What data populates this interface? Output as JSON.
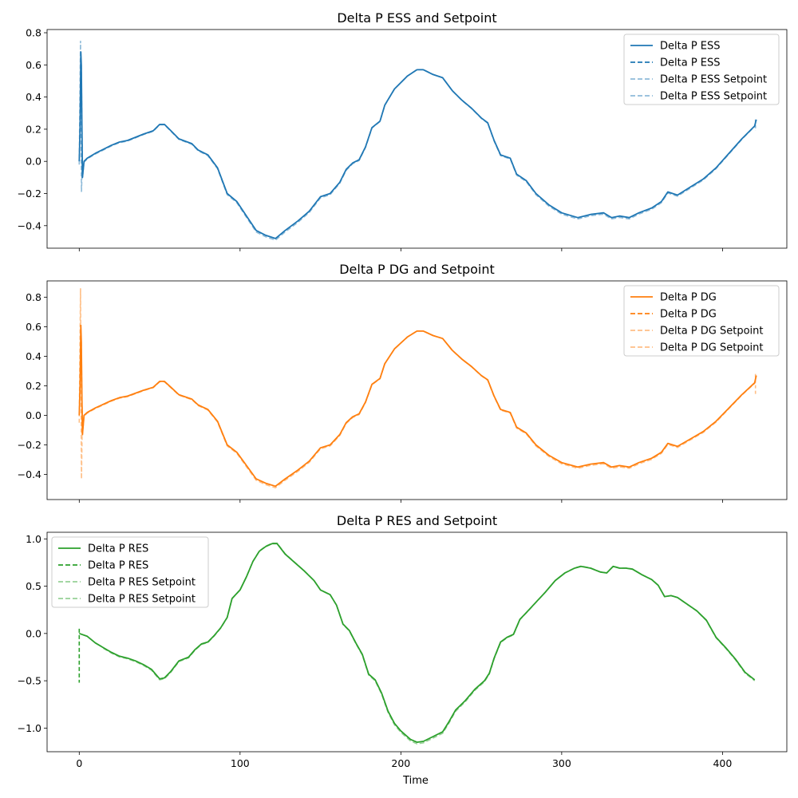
{
  "figure": {
    "xlabel": "Time"
  },
  "chart_data": [
    {
      "type": "line",
      "title": "Delta P ESS and Setpoint",
      "xlabel": "",
      "ylabel": "",
      "xlim": [
        -20,
        440
      ],
      "ylim": [
        -0.54,
        0.82
      ],
      "xticks": [
        0,
        100,
        200,
        300,
        400
      ],
      "xticklabels_visible": false,
      "yticks": [
        -0.4,
        -0.2,
        0.0,
        0.2,
        0.4,
        0.6,
        0.8
      ],
      "ytick_labels": [
        "−0.4",
        "−0.2",
        "0.0",
        "0.2",
        "0.4",
        "0.6",
        "0.8"
      ],
      "legend_position": "upper right",
      "colors": {
        "main": "#1f77b4",
        "setpoint": "#8fbbd9"
      },
      "series": [
        {
          "name": "Delta P ESS",
          "style": "solid"
        },
        {
          "name": "Delta P ESS",
          "style": "dashed"
        },
        {
          "name": "Delta P ESS Setpoint",
          "style": "dashed-light"
        },
        {
          "name": "Delta P ESS Setpoint",
          "style": "dashed-light"
        }
      ],
      "main_curve": [
        [
          0,
          0.0
        ],
        [
          0.5,
          0.2
        ],
        [
          1,
          0.68
        ],
        [
          1.3,
          0.6
        ],
        [
          1.7,
          0.2
        ],
        [
          2,
          -0.1
        ],
        [
          3,
          0.0
        ],
        [
          5,
          0.02
        ],
        [
          10,
          0.05
        ],
        [
          20,
          0.1
        ],
        [
          25,
          0.12
        ],
        [
          30,
          0.13
        ],
        [
          40,
          0.17
        ],
        [
          46,
          0.19
        ],
        [
          50,
          0.23
        ],
        [
          53,
          0.23
        ],
        [
          57,
          0.19
        ],
        [
          62,
          0.14
        ],
        [
          70,
          0.11
        ],
        [
          74,
          0.07
        ],
        [
          80,
          0.04
        ],
        [
          86,
          -0.04
        ],
        [
          92,
          -0.2
        ],
        [
          98,
          -0.25
        ],
        [
          104,
          -0.34
        ],
        [
          110,
          -0.43
        ],
        [
          116,
          -0.46
        ],
        [
          122,
          -0.48
        ],
        [
          128,
          -0.43
        ],
        [
          136,
          -0.37
        ],
        [
          143,
          -0.31
        ],
        [
          150,
          -0.22
        ],
        [
          156,
          -0.2
        ],
        [
          162,
          -0.13
        ],
        [
          166,
          -0.05
        ],
        [
          170,
          -0.01
        ],
        [
          174,
          0.01
        ],
        [
          178,
          0.09
        ],
        [
          182,
          0.21
        ],
        [
          187,
          0.25
        ],
        [
          190,
          0.35
        ],
        [
          196,
          0.45
        ],
        [
          204,
          0.53
        ],
        [
          210,
          0.57
        ],
        [
          214,
          0.57
        ],
        [
          220,
          0.54
        ],
        [
          226,
          0.52
        ],
        [
          232,
          0.44
        ],
        [
          238,
          0.38
        ],
        [
          244,
          0.33
        ],
        [
          250,
          0.27
        ],
        [
          254,
          0.24
        ],
        [
          258,
          0.13
        ],
        [
          262,
          0.04
        ],
        [
          268,
          0.02
        ],
        [
          272,
          -0.08
        ],
        [
          278,
          -0.12
        ],
        [
          284,
          -0.2
        ],
        [
          292,
          -0.27
        ],
        [
          300,
          -0.32
        ],
        [
          310,
          -0.35
        ],
        [
          318,
          -0.33
        ],
        [
          326,
          -0.32
        ],
        [
          331,
          -0.35
        ],
        [
          336,
          -0.34
        ],
        [
          342,
          -0.35
        ],
        [
          348,
          -0.32
        ],
        [
          356,
          -0.29
        ],
        [
          362,
          -0.25
        ],
        [
          366,
          -0.19
        ],
        [
          372,
          -0.21
        ],
        [
          380,
          -0.16
        ],
        [
          388,
          -0.11
        ],
        [
          396,
          -0.04
        ],
        [
          404,
          0.05
        ],
        [
          412,
          0.14
        ],
        [
          420,
          0.22
        ],
        [
          421,
          0.26
        ]
      ],
      "setpoint_spikes": [
        [
          0,
          -0.02
        ],
        [
          0.8,
          0.75
        ],
        [
          1.4,
          -0.19
        ],
        [
          2,
          0.02
        ]
      ],
      "setpoint_end": [
        [
          420.5,
          0.26
        ],
        [
          420.5,
          0.19
        ]
      ]
    },
    {
      "type": "line",
      "title": "Delta P DG and Setpoint",
      "xlabel": "",
      "ylabel": "",
      "xlim": [
        -20,
        440
      ],
      "ylim": [
        -0.57,
        0.91
      ],
      "xticks": [
        0,
        100,
        200,
        300,
        400
      ],
      "xticklabels_visible": false,
      "yticks": [
        -0.4,
        -0.2,
        0.0,
        0.2,
        0.4,
        0.6,
        0.8
      ],
      "ytick_labels": [
        "−0.4",
        "−0.2",
        "0.0",
        "0.2",
        "0.4",
        "0.6",
        "0.8"
      ],
      "legend_position": "upper right",
      "colors": {
        "main": "#ff7f0e",
        "setpoint": "#ffbf86"
      },
      "series": [
        {
          "name": "Delta P DG",
          "style": "solid"
        },
        {
          "name": "Delta P DG",
          "style": "dashed"
        },
        {
          "name": "Delta P DG Setpoint",
          "style": "dashed-light"
        },
        {
          "name": "Delta P DG Setpoint",
          "style": "dashed-light"
        }
      ],
      "main_curve": [
        [
          0,
          0.0
        ],
        [
          0.5,
          0.2
        ],
        [
          1,
          0.61
        ],
        [
          1.3,
          0.5
        ],
        [
          1.7,
          0.1
        ],
        [
          2,
          -0.13
        ],
        [
          3,
          0.0
        ],
        [
          5,
          0.02
        ],
        [
          10,
          0.05
        ],
        [
          20,
          0.1
        ],
        [
          25,
          0.12
        ],
        [
          30,
          0.13
        ],
        [
          40,
          0.17
        ],
        [
          46,
          0.19
        ],
        [
          50,
          0.23
        ],
        [
          53,
          0.23
        ],
        [
          57,
          0.19
        ],
        [
          62,
          0.14
        ],
        [
          70,
          0.11
        ],
        [
          74,
          0.07
        ],
        [
          80,
          0.04
        ],
        [
          86,
          -0.04
        ],
        [
          92,
          -0.2
        ],
        [
          98,
          -0.25
        ],
        [
          104,
          -0.34
        ],
        [
          110,
          -0.43
        ],
        [
          116,
          -0.46
        ],
        [
          122,
          -0.48
        ],
        [
          128,
          -0.43
        ],
        [
          136,
          -0.37
        ],
        [
          143,
          -0.31
        ],
        [
          150,
          -0.22
        ],
        [
          156,
          -0.2
        ],
        [
          162,
          -0.13
        ],
        [
          166,
          -0.05
        ],
        [
          170,
          -0.01
        ],
        [
          174,
          0.01
        ],
        [
          178,
          0.09
        ],
        [
          182,
          0.21
        ],
        [
          187,
          0.25
        ],
        [
          190,
          0.35
        ],
        [
          196,
          0.45
        ],
        [
          204,
          0.53
        ],
        [
          210,
          0.57
        ],
        [
          214,
          0.57
        ],
        [
          220,
          0.54
        ],
        [
          226,
          0.52
        ],
        [
          232,
          0.44
        ],
        [
          238,
          0.38
        ],
        [
          244,
          0.33
        ],
        [
          250,
          0.27
        ],
        [
          254,
          0.24
        ],
        [
          258,
          0.13
        ],
        [
          262,
          0.04
        ],
        [
          268,
          0.02
        ],
        [
          272,
          -0.08
        ],
        [
          278,
          -0.12
        ],
        [
          284,
          -0.2
        ],
        [
          292,
          -0.27
        ],
        [
          300,
          -0.32
        ],
        [
          310,
          -0.35
        ],
        [
          318,
          -0.33
        ],
        [
          326,
          -0.32
        ],
        [
          331,
          -0.35
        ],
        [
          336,
          -0.34
        ],
        [
          342,
          -0.35
        ],
        [
          348,
          -0.32
        ],
        [
          356,
          -0.29
        ],
        [
          362,
          -0.25
        ],
        [
          366,
          -0.19
        ],
        [
          372,
          -0.21
        ],
        [
          380,
          -0.16
        ],
        [
          388,
          -0.11
        ],
        [
          396,
          -0.04
        ],
        [
          404,
          0.05
        ],
        [
          412,
          0.14
        ],
        [
          420,
          0.22
        ],
        [
          421,
          0.27
        ]
      ],
      "setpoint_spikes": [
        [
          0,
          -0.05
        ],
        [
          0.8,
          0.86
        ],
        [
          1.4,
          -0.43
        ],
        [
          2,
          0.05
        ]
      ],
      "setpoint_end": [
        [
          420.5,
          0.28
        ],
        [
          420.5,
          0.14
        ]
      ]
    },
    {
      "type": "line",
      "title": "Delta P RES and Setpoint",
      "xlabel": "Time",
      "ylabel": "",
      "xlim": [
        -20,
        440
      ],
      "ylim": [
        -1.25,
        1.07
      ],
      "xticks": [
        0,
        100,
        200,
        300,
        400
      ],
      "xtick_labels": [
        "0",
        "100",
        "200",
        "300",
        "400"
      ],
      "xticklabels_visible": true,
      "yticks": [
        -1.0,
        -0.5,
        0.0,
        0.5,
        1.0
      ],
      "ytick_labels": [
        "−1.0",
        "−0.5",
        "0.0",
        "0.5",
        "1.0"
      ],
      "legend_position": "upper left",
      "colors": {
        "main": "#2ca02c",
        "setpoint": "#96d096"
      },
      "series": [
        {
          "name": "Delta P RES",
          "style": "solid"
        },
        {
          "name": "Delta P RES",
          "style": "dashed"
        },
        {
          "name": "Delta P RES Setpoint",
          "style": "dashed-light"
        },
        {
          "name": "Delta P RES Setpoint",
          "style": "dashed-light"
        }
      ],
      "main_curve": [
        [
          0,
          0.0
        ],
        [
          5,
          -0.03
        ],
        [
          10,
          -0.1
        ],
        [
          15,
          -0.15
        ],
        [
          20,
          -0.2
        ],
        [
          25,
          -0.24
        ],
        [
          30,
          -0.26
        ],
        [
          35,
          -0.29
        ],
        [
          40,
          -0.33
        ],
        [
          45,
          -0.38
        ],
        [
          48,
          -0.44
        ],
        [
          50,
          -0.48
        ],
        [
          53,
          -0.47
        ],
        [
          57,
          -0.4
        ],
        [
          62,
          -0.29
        ],
        [
          68,
          -0.25
        ],
        [
          72,
          -0.17
        ],
        [
          76,
          -0.11
        ],
        [
          80,
          -0.09
        ],
        [
          84,
          -0.02
        ],
        [
          88,
          0.06
        ],
        [
          92,
          0.17
        ],
        [
          95,
          0.37
        ],
        [
          100,
          0.46
        ],
        [
          104,
          0.6
        ],
        [
          108,
          0.76
        ],
        [
          112,
          0.87
        ],
        [
          116,
          0.92
        ],
        [
          120,
          0.95
        ],
        [
          123,
          0.95
        ],
        [
          128,
          0.84
        ],
        [
          134,
          0.75
        ],
        [
          140,
          0.66
        ],
        [
          146,
          0.56
        ],
        [
          150,
          0.46
        ],
        [
          156,
          0.41
        ],
        [
          160,
          0.3
        ],
        [
          164,
          0.1
        ],
        [
          168,
          0.03
        ],
        [
          172,
          -0.1
        ],
        [
          176,
          -0.22
        ],
        [
          180,
          -0.43
        ],
        [
          184,
          -0.49
        ],
        [
          188,
          -0.63
        ],
        [
          192,
          -0.82
        ],
        [
          196,
          -0.95
        ],
        [
          200,
          -1.03
        ],
        [
          206,
          -1.12
        ],
        [
          210,
          -1.15
        ],
        [
          214,
          -1.14
        ],
        [
          220,
          -1.09
        ],
        [
          226,
          -1.04
        ],
        [
          230,
          -0.93
        ],
        [
          234,
          -0.81
        ],
        [
          240,
          -0.71
        ],
        [
          246,
          -0.59
        ],
        [
          252,
          -0.5
        ],
        [
          255,
          -0.42
        ],
        [
          258,
          -0.26
        ],
        [
          262,
          -0.09
        ],
        [
          266,
          -0.04
        ],
        [
          270,
          -0.01
        ],
        [
          274,
          0.15
        ],
        [
          278,
          0.22
        ],
        [
          284,
          0.33
        ],
        [
          290,
          0.44
        ],
        [
          296,
          0.56
        ],
        [
          302,
          0.64
        ],
        [
          308,
          0.69
        ],
        [
          312,
          0.71
        ],
        [
          318,
          0.69
        ],
        [
          324,
          0.65
        ],
        [
          328,
          0.64
        ],
        [
          332,
          0.71
        ],
        [
          336,
          0.69
        ],
        [
          340,
          0.69
        ],
        [
          344,
          0.68
        ],
        [
          350,
          0.62
        ],
        [
          356,
          0.57
        ],
        [
          360,
          0.51
        ],
        [
          364,
          0.39
        ],
        [
          368,
          0.4
        ],
        [
          372,
          0.38
        ],
        [
          378,
          0.31
        ],
        [
          384,
          0.24
        ],
        [
          390,
          0.14
        ],
        [
          396,
          -0.04
        ],
        [
          402,
          -0.15
        ],
        [
          408,
          -0.27
        ],
        [
          414,
          -0.41
        ],
        [
          420,
          -0.49
        ]
      ],
      "setpoint_spikes": [
        [
          0,
          0.05
        ],
        [
          0,
          -0.52
        ]
      ],
      "setpoint_end": []
    }
  ]
}
